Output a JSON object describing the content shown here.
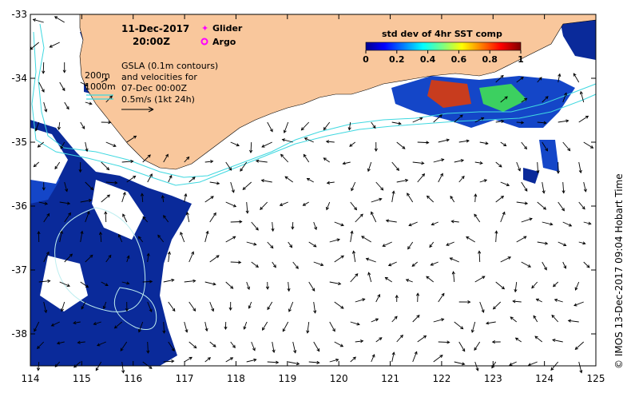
{
  "header": {
    "date": "11-Dec-2017",
    "time": "20:00Z"
  },
  "legend": {
    "glider": "Glider",
    "argo": "Argo",
    "glider_color": "#ff00ff",
    "argo_color": "#ff00ff"
  },
  "isobaths": {
    "shallow": "200m",
    "deep": "1000m"
  },
  "gsla_note": {
    "line1": "GSLA (0.1m contours)",
    "line2": "and velocities for",
    "line3": "07-Dec 00:00Z",
    "line4": "0.5m/s (1kt 24h)"
  },
  "colorbar": {
    "title": "std dev of 4hr SST comp",
    "ticks": [
      "0",
      "0.2",
      "0.4",
      "0.6",
      "0.8",
      "1"
    ],
    "range": [
      0,
      1
    ]
  },
  "axes": {
    "x_ticks": [
      "114",
      "115",
      "116",
      "117",
      "118",
      "119",
      "120",
      "121",
      "122",
      "123",
      "124",
      "125"
    ],
    "y_ticks": [
      "-33",
      "-34",
      "-35",
      "-36",
      "-37",
      "-38"
    ],
    "x_range": [
      114,
      125
    ],
    "y_range": [
      -38.5,
      -33
    ]
  },
  "credit": "© IMOS 13-Dec-2017 09:04 Hobart Time",
  "colors": {
    "land": "#f9c79c",
    "isobath": "#3fd8e0",
    "sst_low": "#0a2a9a"
  }
}
